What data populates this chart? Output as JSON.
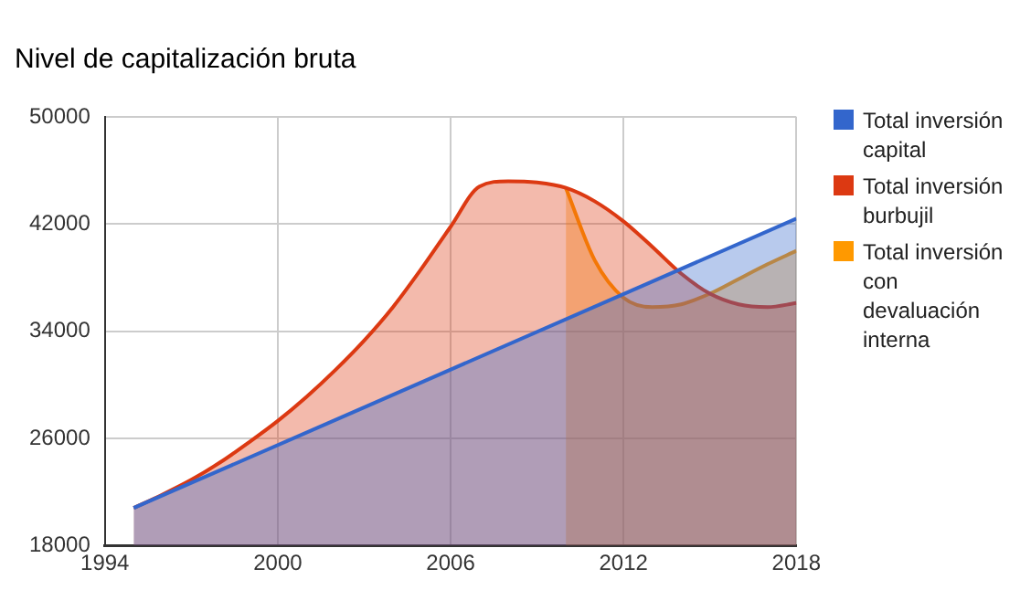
{
  "chart_data": {
    "type": "area",
    "title": "Nivel de capitalización bruta",
    "xlim": [
      1994,
      2018
    ],
    "xticks": [
      1994,
      2000,
      2006,
      2012,
      2018
    ],
    "ylim": [
      18000,
      50000
    ],
    "yticks": [
      18000,
      26000,
      34000,
      42000,
      50000
    ],
    "grid": true,
    "legend": "right",
    "series": [
      {
        "name": "Total inversión capital",
        "color": "#3366cc",
        "x": [
          1995,
          2018
        ],
        "values": [
          20800,
          42400
        ]
      },
      {
        "name": "Total inversión burbujil",
        "color": "#dc3912",
        "x": [
          1995,
          1996,
          1997,
          1998,
          1999,
          2000,
          2001,
          2002,
          2003,
          2004,
          2005,
          2006,
          2007,
          2008,
          2009,
          2010,
          2011,
          2012,
          2013,
          2014,
          2015,
          2016,
          2017,
          2018
        ],
        "values": [
          20800,
          21800,
          22900,
          24200,
          25700,
          27300,
          29100,
          31100,
          33300,
          35800,
          38700,
          41800,
          44800,
          45200,
          45100,
          44700,
          43700,
          42200,
          40300,
          38300,
          36800,
          36000,
          35800,
          36100
        ]
      },
      {
        "name": "Total inversión con devaluación interna",
        "color": "#ff9900",
        "x": [
          2010,
          2011,
          2012,
          2013,
          2014,
          2015,
          2016,
          2017,
          2018
        ],
        "values": [
          44700,
          39300,
          36500,
          35800,
          36000,
          36800,
          37900,
          39000,
          40000
        ]
      }
    ]
  }
}
